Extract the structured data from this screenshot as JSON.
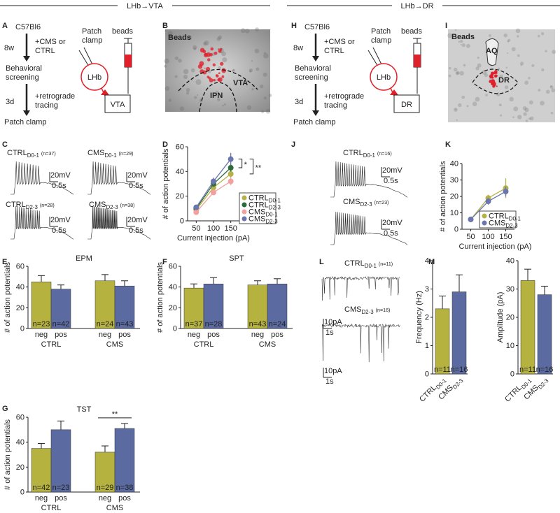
{
  "header": {
    "left": "LHb→VTA",
    "right": "LHb→DR"
  },
  "letters": [
    "A",
    "B",
    "C",
    "D",
    "E",
    "F",
    "G",
    "H",
    "I",
    "J",
    "K",
    "L",
    "M"
  ],
  "panel_a": {
    "strain": "C57Bl6",
    "time1": "8w",
    "step1": [
      "+CMS or",
      "CTRL"
    ],
    "screening": [
      "Behavioral",
      "screening"
    ],
    "time2": "3d",
    "step2": [
      "+retrograde",
      "tracing"
    ],
    "end": "Patch clamp",
    "patch": [
      "Patch",
      "clamp"
    ],
    "beads": "beads",
    "lhb": "LHb",
    "target": "VTA"
  },
  "panel_h": {
    "strain": "C57Bl6",
    "time1": "8w",
    "step1": [
      "+CMS or",
      "CTRL"
    ],
    "screening": [
      "Behavioral",
      "screening"
    ],
    "time2": "3d",
    "step2": [
      "+retrograde",
      "tracing"
    ],
    "end": "Patch clamp",
    "patch": [
      "Patch",
      "clamp"
    ],
    "beads": "beads",
    "lhb": "LHb",
    "target": "DR"
  },
  "panel_b": {
    "beads": "Beads",
    "region1": "VTA",
    "region2": "IPN"
  },
  "panel_i": {
    "beads": "Beads",
    "region1": "AQ",
    "region2": "DR"
  },
  "panel_c": {
    "scale_v": "20mV",
    "scale_t": "0.5s",
    "traces": [
      {
        "name": "CTRL",
        "sub": "D0-1",
        "n": "(n=37)",
        "color": "#b5b040"
      },
      {
        "name": "CMS",
        "sub": "D0-1",
        "n": "(n=29)",
        "color": "#e9807c"
      },
      {
        "name": "CTRL",
        "sub": "D2-3",
        "n": "(n=28)",
        "color": "#2e6e3a"
      },
      {
        "name": "CMS",
        "sub": "D2-3",
        "n": "(n=38)",
        "color": "#5a6aa8"
      }
    ]
  },
  "panel_j": {
    "scale_v": "20mV",
    "scale_t": "0.5s",
    "traces": [
      {
        "name": "CTRL",
        "sub": "D0-1",
        "n": "(n=16)",
        "color": "#b5b040"
      },
      {
        "name": "CMS",
        "sub": "D2-3",
        "n": "(n=23)",
        "color": "#5a6aa8"
      }
    ]
  },
  "panel_l": {
    "scale_v": "10pA",
    "scale_t": "1s",
    "traces": [
      {
        "name": "CTRL",
        "sub": "D0-1",
        "n": "(n=11)",
        "color": "#b5b040"
      },
      {
        "name": "CMS",
        "sub": "D2-3",
        "n": "(n=16)",
        "color": "#5a6aa8"
      }
    ]
  },
  "chart_data": [
    {
      "type": "line",
      "xlabel": "Current injection (pA)",
      "ylabel": "# of action potentials",
      "x": [
        50,
        100,
        150
      ],
      "xlim": [
        25,
        175
      ],
      "xticks": [
        50,
        100,
        150
      ],
      "ylim": [
        0,
        60
      ],
      "yticks": [
        0,
        20,
        40,
        60
      ],
      "legend": "lower right",
      "annotations": [
        "*",
        "**"
      ],
      "series": [
        {
          "name": "CTRL",
          "name_sub": "D0-1",
          "color": "#b5b24a",
          "values": [
            9,
            27,
            38
          ],
          "errors": [
            1,
            2,
            3
          ]
        },
        {
          "name": "CTRL",
          "name_sub": "D2-3",
          "color": "#2e6b3c",
          "values": [
            10,
            30,
            43
          ],
          "errors": [
            1,
            2,
            3
          ]
        },
        {
          "name": "CMS",
          "name_sub": "D0-1",
          "color": "#f3a0a0",
          "values": [
            7,
            23,
            32
          ],
          "errors": [
            1,
            2,
            3
          ]
        },
        {
          "name": "CMS",
          "name_sub": "D2-3",
          "color": "#6a76ad",
          "values": [
            11,
            32,
            50
          ],
          "errors": [
            1,
            3,
            5
          ]
        }
      ]
    },
    {
      "type": "line",
      "xlabel": "Current injection (pA)",
      "ylabel": "# of action potentials",
      "x": [
        50,
        100,
        150
      ],
      "xlim": [
        25,
        175
      ],
      "xticks": [
        50,
        100,
        150
      ],
      "ylim": [
        0,
        40
      ],
      "yticks": [
        0,
        10,
        20,
        30,
        40
      ],
      "legend": "lower right",
      "series": [
        {
          "name": "CTRL",
          "name_sub": "D0-1",
          "color": "#b5b24a",
          "values": [
            6,
            19,
            25
          ],
          "errors": [
            1,
            2,
            6
          ]
        },
        {
          "name": "CMS",
          "name_sub": "D2-3",
          "color": "#6a76ad",
          "values": [
            6,
            17,
            23
          ],
          "errors": [
            1,
            2,
            3
          ]
        }
      ]
    },
    {
      "type": "bar",
      "title": "EPM",
      "ylabel": "# of action potentials",
      "categories": [
        "neg",
        "pos",
        "neg",
        "pos"
      ],
      "groups": [
        "CTRL",
        "CMS"
      ],
      "colors": [
        "#b5b240",
        "#5b6aa0"
      ],
      "values": [
        45,
        38,
        46,
        41
      ],
      "errors": [
        6,
        4,
        6,
        5
      ],
      "n_labels": [
        "n=23",
        "n=42",
        "n=24",
        "n=43"
      ],
      "ylim": [
        0,
        60
      ],
      "yticks": [
        0,
        20,
        40,
        60
      ]
    },
    {
      "type": "bar",
      "title": "SPT",
      "ylabel": "# of action potentials",
      "categories": [
        "neg",
        "pos",
        "neg",
        "pos"
      ],
      "groups": [
        "CTRL",
        "CMS"
      ],
      "colors": [
        "#b5b240",
        "#5b6aa0"
      ],
      "values": [
        39,
        43,
        42,
        43
      ],
      "errors": [
        4,
        6,
        4,
        5
      ],
      "n_labels": [
        "n=37",
        "n=28",
        "n=43",
        "n=24"
      ],
      "ylim": [
        0,
        60
      ],
      "yticks": [
        0,
        20,
        40,
        60
      ]
    },
    {
      "type": "bar",
      "title": "TST",
      "ylabel": "# of action potentials",
      "categories": [
        "neg",
        "pos",
        "neg",
        "pos"
      ],
      "groups": [
        "CTRL",
        "CMS"
      ],
      "colors": [
        "#b5b240",
        "#5b6aa0"
      ],
      "values": [
        35,
        50,
        32,
        51
      ],
      "errors": [
        4,
        7,
        5,
        4
      ],
      "n_labels": [
        "n=42",
        "n=23",
        "n=29",
        "n=38"
      ],
      "ylim": [
        0,
        60
      ],
      "yticks": [
        0,
        20,
        40,
        60
      ],
      "annotations": [
        "**"
      ]
    },
    {
      "type": "bar",
      "ylabel": "Frequency (Hz)",
      "categories": [
        "CTRL",
        "CMS"
      ],
      "category_subs": [
        "D0-1",
        "D2-3"
      ],
      "colors": [
        "#b5b240",
        "#5b6aa0"
      ],
      "values": [
        2.3,
        2.9
      ],
      "errors": [
        0.45,
        0.6
      ],
      "n_labels": [
        "n=11",
        "n=16"
      ],
      "ylim": [
        0,
        4
      ],
      "yticks": [
        0,
        1,
        2,
        3,
        4
      ]
    },
    {
      "type": "bar",
      "ylabel": "Amplitude (pA)",
      "categories": [
        "CTRL",
        "CMS"
      ],
      "category_subs": [
        "D0-1",
        "D2-3"
      ],
      "colors": [
        "#b5b240",
        "#5b6aa0"
      ],
      "values": [
        33,
        28
      ],
      "errors": [
        4,
        3
      ],
      "n_labels": [
        "n=11",
        "n=16"
      ],
      "ylim": [
        0,
        40
      ],
      "yticks": [
        0,
        10,
        20,
        30,
        40
      ]
    }
  ]
}
